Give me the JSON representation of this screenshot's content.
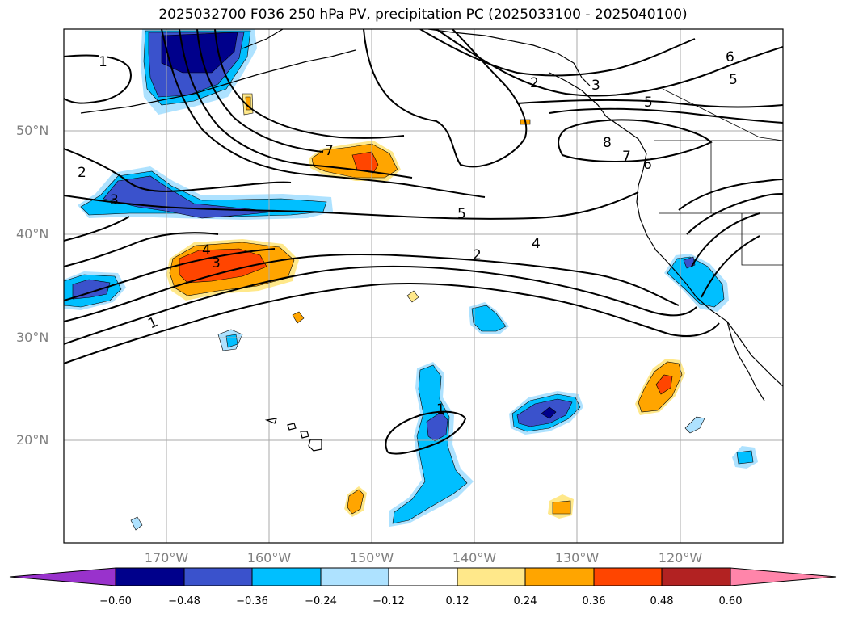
{
  "title": "2025032700 F036 250 hPa PV, precipitation PC (2025033100 - 2025040100)",
  "map": {
    "region": "North Pacific",
    "lat_labels": [
      "50°N",
      "40°N",
      "30°N",
      "20°N"
    ],
    "lon_labels": [
      "170°W",
      "160°W",
      "150°W",
      "140°W",
      "130°W",
      "120°W"
    ],
    "gridlines": true,
    "contour_labels": [
      "1",
      "2",
      "3",
      "4",
      "5",
      "6",
      "7",
      "8"
    ]
  },
  "colorbar": {
    "orientation": "horizontal",
    "extend": "both",
    "tick_labels": [
      "−0.60",
      "−0.48",
      "−0.36",
      "−0.24",
      "−0.12",
      "0.12",
      "0.24",
      "0.36",
      "0.48",
      "0.60"
    ],
    "colors": [
      "#9932cc",
      "#00008b",
      "#3a52cc",
      "#00bfff",
      "#aee2ff",
      "#ffffff",
      "#ffe88a",
      "#ffa500",
      "#ff4500",
      "#b22222",
      "#ff85aa"
    ]
  },
  "colors": {
    "contour": "#000000",
    "grid": "#aaaaaa",
    "axis_label": "#7f7f7f"
  }
}
